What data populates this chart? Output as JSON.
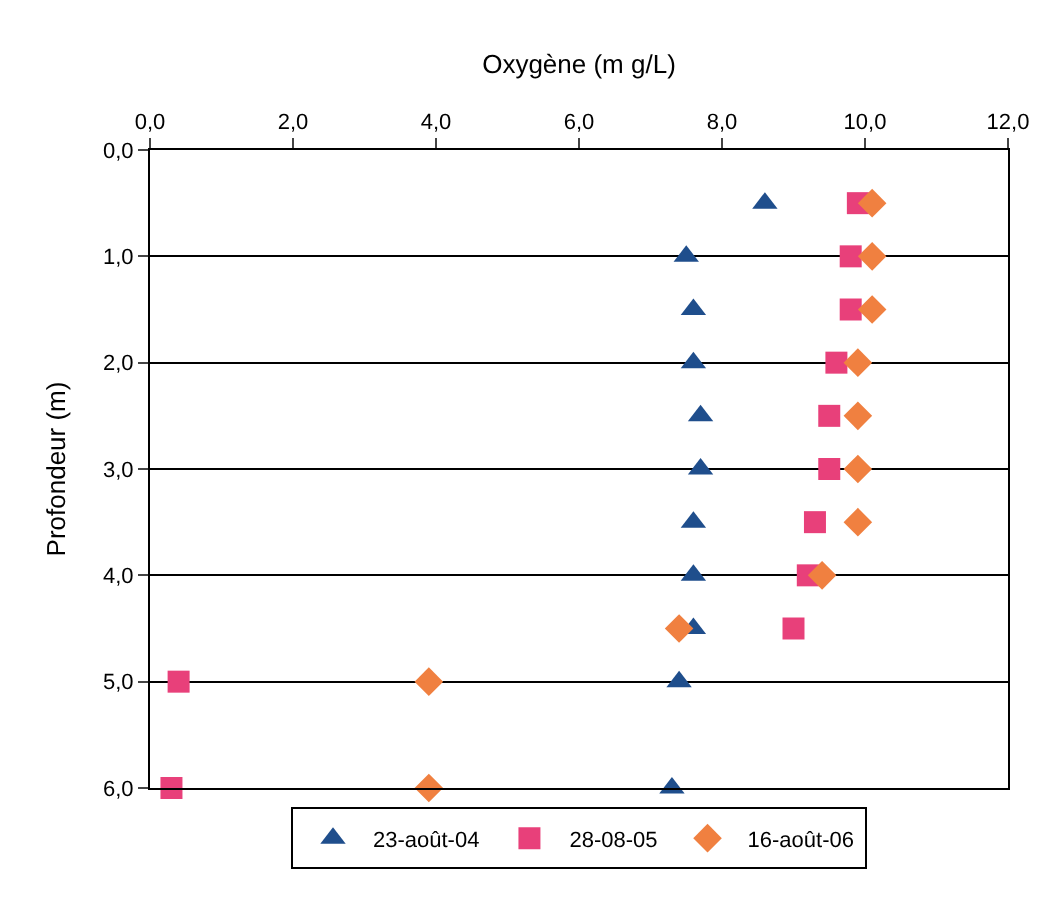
{
  "chart_data": {
    "type": "scatter",
    "title": null,
    "xlabel": "Oxygène (m g/L)",
    "ylabel": "Profondeur (m)",
    "xlim": [
      0,
      12
    ],
    "xticks": [
      {
        "value": 0,
        "label": "0,0"
      },
      {
        "value": 2,
        "label": "2,0"
      },
      {
        "value": 4,
        "label": "4,0"
      },
      {
        "value": 6,
        "label": "6,0"
      },
      {
        "value": 8,
        "label": "8,0"
      },
      {
        "value": 10,
        "label": "10,0"
      },
      {
        "value": 12,
        "label": "12,0"
      }
    ],
    "ylim": [
      6,
      0
    ],
    "yticks": [
      {
        "value": 0,
        "label": "0,0"
      },
      {
        "value": 1,
        "label": "1,0"
      },
      {
        "value": 2,
        "label": "2,0"
      },
      {
        "value": 3,
        "label": "3,0"
      },
      {
        "value": 4,
        "label": "4,0"
      },
      {
        "value": 5,
        "label": "5,0"
      },
      {
        "value": 6,
        "label": "6,0"
      }
    ],
    "grid": "y",
    "legend": "bottom",
    "series": [
      {
        "name": "23-août-04",
        "color": "#1f4e8c",
        "marker": "triangle",
        "x": [
          8.6,
          7.5,
          7.6,
          7.6,
          7.7,
          7.7,
          7.6,
          7.6,
          7.6,
          7.4,
          7.3
        ],
        "values": [
          0.5,
          1.0,
          1.5,
          2.0,
          2.5,
          3.0,
          3.5,
          4.0,
          4.5,
          5.0,
          6.0
        ]
      },
      {
        "name": "28-08-05",
        "color": "#e8407a",
        "marker": "square",
        "x": [
          9.9,
          9.8,
          9.8,
          9.6,
          9.5,
          9.5,
          9.3,
          9.2,
          9.0,
          0.4,
          0.3
        ],
        "values": [
          0.5,
          1.0,
          1.5,
          2.0,
          2.5,
          3.0,
          3.5,
          4.0,
          4.5,
          5.0,
          6.0
        ]
      },
      {
        "name": "16-août-06",
        "color": "#f08040",
        "marker": "diamond",
        "x": [
          10.1,
          10.1,
          10.1,
          9.9,
          9.9,
          9.9,
          9.9,
          9.4,
          7.4,
          3.9,
          3.9
        ],
        "values": [
          0.5,
          1.0,
          1.5,
          2.0,
          2.5,
          3.0,
          3.5,
          4.0,
          4.5,
          5.0,
          6.0
        ]
      }
    ]
  }
}
